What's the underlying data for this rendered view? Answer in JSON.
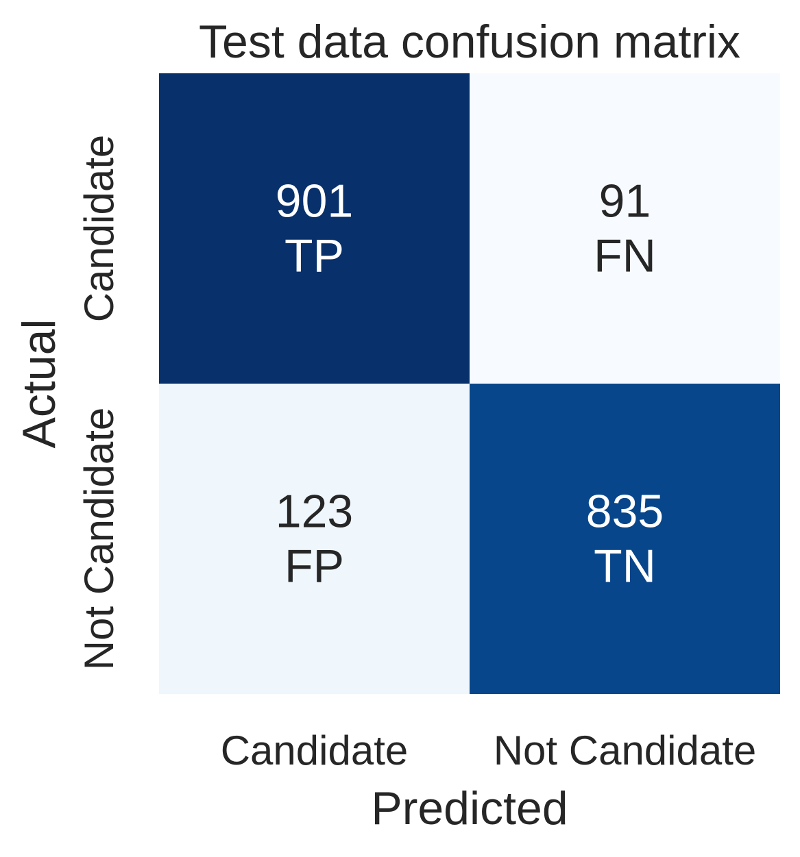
{
  "chart_data": {
    "type": "heatmap",
    "title": "Test data confusion matrix",
    "xlabel": "Predicted",
    "ylabel": "Actual",
    "x_categories": [
      "Candidate",
      "Not Candidate"
    ],
    "y_categories": [
      "Candidate",
      "Not Candidate"
    ],
    "values": [
      [
        901,
        91
      ],
      [
        123,
        835
      ]
    ],
    "cell_labels": [
      [
        "TP",
        "FN"
      ],
      [
        "FP",
        "TN"
      ]
    ],
    "colormap": "Blues",
    "colorbar": false,
    "colors": {
      "max": "#08306b",
      "min": "#f7fbff",
      "text_dark": "#262626",
      "text_light": "#ffffff"
    }
  }
}
